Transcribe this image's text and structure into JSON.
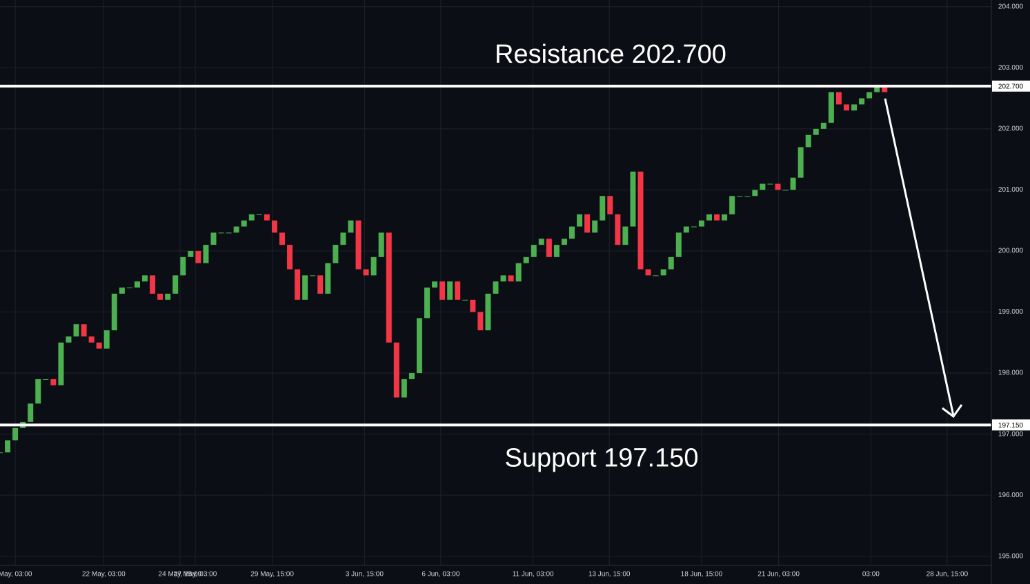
{
  "chart_data": {
    "type": "candlestick",
    "up_color": "#4caf50",
    "down_color": "#f23645",
    "closes": [
      196.7,
      196.9,
      197.1,
      197.2,
      197.5,
      197.9,
      197.9,
      197.8,
      198.5,
      198.6,
      198.8,
      198.6,
      198.5,
      198.4,
      198.7,
      199.3,
      199.4,
      199.4,
      199.5,
      199.6,
      199.3,
      199.2,
      199.3,
      199.6,
      199.9,
      200.0,
      199.8,
      200.1,
      200.3,
      200.3,
      200.3,
      200.4,
      200.5,
      200.6,
      200.6,
      200.5,
      200.3,
      200.1,
      199.7,
      199.2,
      199.6,
      199.6,
      199.3,
      199.8,
      200.1,
      200.3,
      200.5,
      199.7,
      199.6,
      199.9,
      200.3,
      198.5,
      197.6,
      197.9,
      198.0,
      198.9,
      199.4,
      199.5,
      199.2,
      199.5,
      199.2,
      199.2,
      199.0,
      198.7,
      199.3,
      199.5,
      199.6,
      199.5,
      199.8,
      199.9,
      200.1,
      200.2,
      199.9,
      200.1,
      200.2,
      200.4,
      200.6,
      200.3,
      200.5,
      200.9,
      200.6,
      200.1,
      200.4,
      201.3,
      199.7,
      199.6,
      199.6,
      199.7,
      199.9,
      200.3,
      200.4,
      200.4,
      200.5,
      200.6,
      200.5,
      200.6,
      200.9,
      200.9,
      200.9,
      201.0,
      201.1,
      201.1,
      201.0,
      201.0,
      201.2,
      201.7,
      201.9,
      202.0,
      202.1,
      202.6,
      202.4,
      202.3,
      202.4,
      202.5,
      202.6,
      202.7,
      202.6
    ],
    "xlim": [
      0,
      130
    ],
    "xticks": [
      {
        "value": 2,
        "label": "May, 03:00"
      },
      {
        "value": 13.6,
        "label": "22 May, 03:00"
      },
      {
        "value": 23.6,
        "label": "24 May, 15:00"
      },
      {
        "value": 25.6,
        "label": "27 May, 03:00"
      },
      {
        "value": 35.7,
        "label": "29 May, 15:00"
      },
      {
        "value": 47.8,
        "label": "3 Jun, 15:00"
      },
      {
        "value": 57.8,
        "label": "6 Jun, 03:00"
      },
      {
        "value": 69.9,
        "label": "11 Jun, 03:00"
      },
      {
        "value": 79.9,
        "label": "13 Jun, 15:00"
      },
      {
        "value": 92,
        "label": "18 Jun, 15:00"
      },
      {
        "value": 102.1,
        "label": "21 Jun, 03:00"
      },
      {
        "value": 114.2,
        "label": "03:00"
      },
      {
        "value": 124.2,
        "label": "28 Jun, 15:00"
      }
    ],
    "ylim": [
      194.85,
      204.11
    ],
    "yticks": [
      {
        "value": 195,
        "label": "195.000"
      },
      {
        "value": 196,
        "label": "196.000"
      },
      {
        "value": 197,
        "label": "197.000"
      },
      {
        "value": 198,
        "label": "198.000"
      },
      {
        "value": 199,
        "label": "199.000"
      },
      {
        "value": 200,
        "label": "200.000"
      },
      {
        "value": 201,
        "label": "201.000"
      },
      {
        "value": 202,
        "label": "202.000"
      },
      {
        "value": 203,
        "label": "203.000"
      },
      {
        "value": 204,
        "label": "204.000"
      }
    ],
    "grid": true,
    "levels": [
      {
        "name": "Resistance 202.700",
        "value": 202.7,
        "label": "202.700"
      },
      {
        "name": "Support 197.150",
        "value": 197.15,
        "label": "197.150"
      }
    ]
  }
}
